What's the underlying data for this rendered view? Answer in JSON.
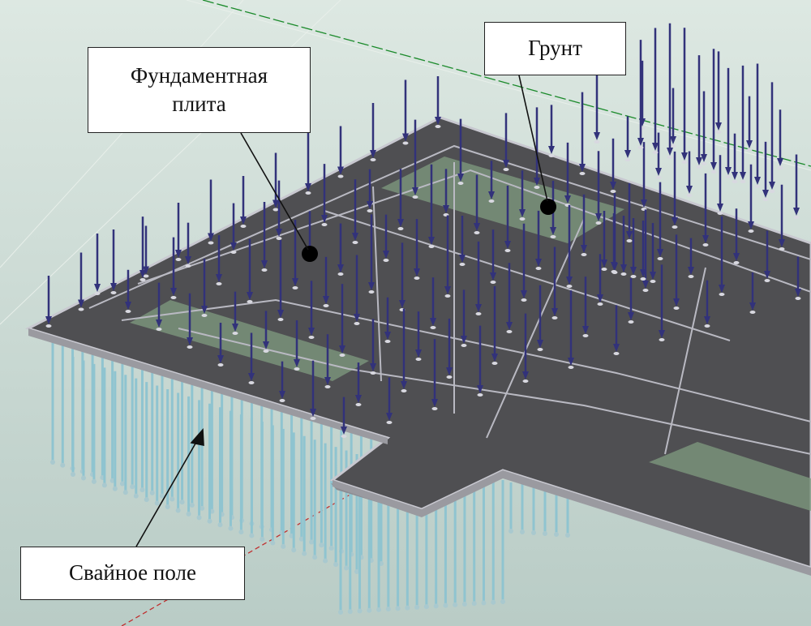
{
  "labels": {
    "slab_line1": "Фундаментная",
    "slab_line2": "плита",
    "soil": "Грунт",
    "piles": "Свайное поле"
  },
  "colors": {
    "background_top": "#dde8e2",
    "background_bottom": "#b9ccc6",
    "slab_top": "#505050",
    "slab_edge": "#c8c8d0",
    "soil_patch": "#7f9b80",
    "arrow": "#32327a",
    "pile": "#8fc4d0",
    "axis_green": "#1a8a2a",
    "axis_red": "#c03030"
  }
}
